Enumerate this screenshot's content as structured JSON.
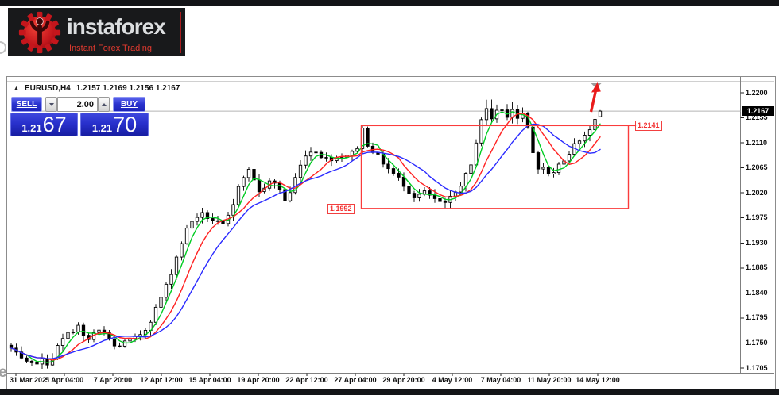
{
  "page": {
    "watermark_letter": "e"
  },
  "branding": {
    "logo_text": "instaforex",
    "tagline": "Instant Forex Trading",
    "accent_red": "#d8232a"
  },
  "chart": {
    "collapse_marker": "▲",
    "title_symbol": "EURUSD,H4",
    "title_ohlc": "1.2157 1.2169 1.2156 1.2167"
  },
  "trade_panel": {
    "sell_label": "SELL",
    "buy_label": "BUY",
    "volume_value": "2.00",
    "sell_price": {
      "big": "1.21",
      "pips": "67"
    },
    "buy_price": {
      "big": "1.21",
      "pips": "70"
    }
  },
  "chart_data": {
    "type": "candlestick",
    "symbol": "EURUSD",
    "timeframe": "H4",
    "last_candle": {
      "open": 1.2157,
      "high": 1.2169,
      "low": 1.2156,
      "close": 1.2167
    },
    "current_bid": "1.2167",
    "y_axis": {
      "top_price": 1.22,
      "bottom_price": 1.1705,
      "ticks": [
        "1.2200",
        "1.2155",
        "1.2110",
        "1.2065",
        "1.2020",
        "1.1975",
        "1.1930",
        "1.1885",
        "1.1840",
        "1.1795",
        "1.1750",
        "1.1705"
      ]
    },
    "x_axis": {
      "labels": [
        "31 Mar 2021",
        "5 Apr 04:00",
        "7 Apr 20:00",
        "12 Apr 12:00",
        "15 Apr 04:00",
        "19 Apr 20:00",
        "22 Apr 12:00",
        "27 Apr 04:00",
        "29 Apr 20:00",
        "4 May 12:00",
        "7 May 04:00",
        "11 May 20:00",
        "14 May 12:00"
      ]
    },
    "moving_averages": [
      {
        "name": "fast",
        "period": 4,
        "color": "#00cc22"
      },
      {
        "name": "medium",
        "period": 8,
        "color": "#ff2222"
      },
      {
        "name": "slow",
        "period": 13,
        "color": "#2a2aff"
      }
    ],
    "candle_count": 115,
    "price_path": [
      [
        14,
        1.174
      ],
      [
        25,
        1.1722
      ],
      [
        38,
        1.1708
      ],
      [
        50,
        1.172
      ],
      [
        62,
        1.1713
      ],
      [
        75,
        1.175
      ],
      [
        88,
        1.177
      ],
      [
        100,
        1.1782
      ],
      [
        108,
        1.1749
      ],
      [
        120,
        1.1772
      ],
      [
        132,
        1.1767
      ],
      [
        145,
        1.1742
      ],
      [
        158,
        1.1752
      ],
      [
        172,
        1.176
      ],
      [
        185,
        1.1778
      ],
      [
        198,
        1.1818
      ],
      [
        212,
        1.1862
      ],
      [
        225,
        1.1918
      ],
      [
        238,
        1.1965
      ],
      [
        252,
        1.1983
      ],
      [
        265,
        1.1973
      ],
      [
        280,
        1.196
      ],
      [
        292,
        1.1988
      ],
      [
        302,
        1.2046
      ],
      [
        315,
        1.2062
      ],
      [
        326,
        1.2021
      ],
      [
        338,
        1.2039
      ],
      [
        350,
        1.2034
      ],
      [
        360,
        1.2001
      ],
      [
        372,
        1.2049
      ],
      [
        385,
        1.2092
      ],
      [
        398,
        1.2096
      ],
      [
        408,
        1.2081
      ],
      [
        422,
        1.2083
      ],
      [
        435,
        1.2089
      ],
      [
        448,
        1.2093
      ],
      [
        455,
        1.2139
      ],
      [
        463,
        1.2106
      ],
      [
        475,
        1.2086
      ],
      [
        490,
        1.2061
      ],
      [
        505,
        1.2041
      ],
      [
        520,
        1.2013
      ],
      [
        535,
        1.2021
      ],
      [
        548,
        1.2006
      ],
      [
        560,
        1.1999
      ],
      [
        572,
        1.2019
      ],
      [
        584,
        1.2046
      ],
      [
        594,
        1.2071
      ],
      [
        603,
        1.2147
      ],
      [
        612,
        1.2169
      ],
      [
        620,
        1.2151
      ],
      [
        628,
        1.2179
      ],
      [
        636,
        1.2156
      ],
      [
        644,
        1.2173
      ],
      [
        652,
        1.2151
      ],
      [
        660,
        1.2163
      ],
      [
        667,
        1.2116
      ],
      [
        674,
        1.2069
      ],
      [
        684,
        1.2063
      ],
      [
        694,
        1.2049
      ],
      [
        704,
        1.2073
      ],
      [
        714,
        1.2089
      ],
      [
        724,
        1.2109
      ],
      [
        734,
        1.2123
      ],
      [
        744,
        1.2139
      ],
      [
        751,
        1.2153
      ],
      [
        757,
        1.2167
      ]
    ],
    "annotations": {
      "rectangle": {
        "price_low": 1.1992,
        "price_high": 1.2141,
        "label_low": "1.1992",
        "label_high": "1.2141",
        "color": "#fa3c3c"
      },
      "arrow": {
        "direction": "up",
        "color": "#e91b1b"
      }
    },
    "colors": {
      "bull_fill": "#ffffff",
      "bear_fill": "#000000",
      "outline": "#000000",
      "bid_line": "#b4b4b4",
      "separator": "#7f7f7f"
    }
  }
}
